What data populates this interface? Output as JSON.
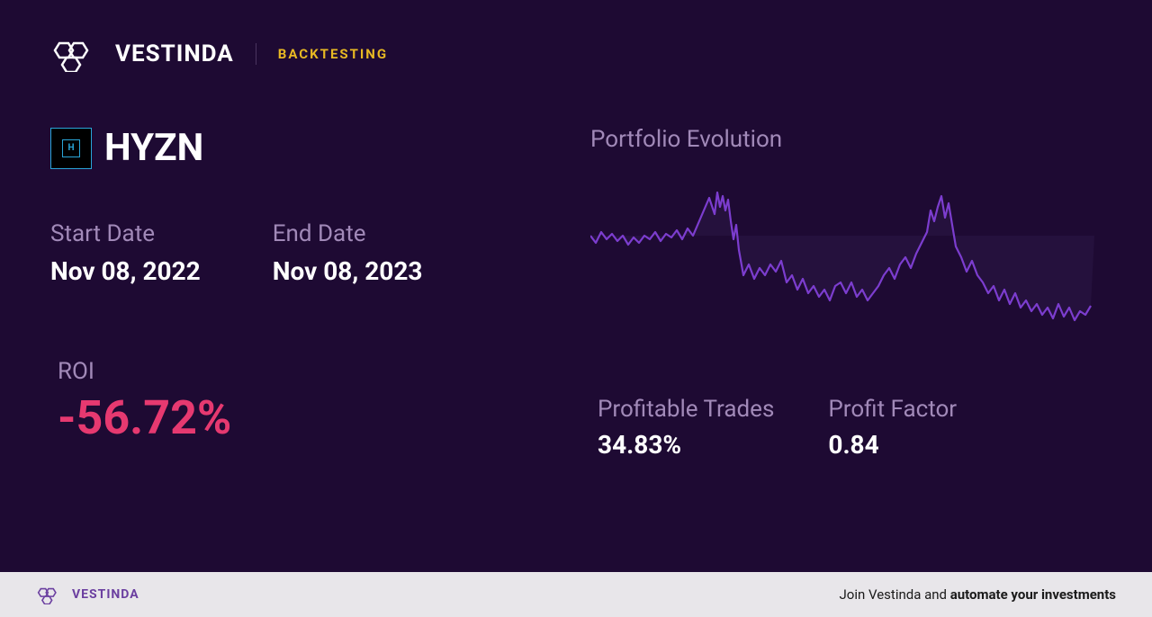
{
  "header": {
    "brand": "VESTINDA",
    "badge": "BACKTESTING",
    "logo_color": "#ffffff"
  },
  "ticker": {
    "symbol": "HYZN",
    "icon_letter": "H",
    "icon_border_color": "#2aa5d8",
    "icon_bg": "#000000"
  },
  "dates": {
    "start_label": "Start Date",
    "start_value": "Nov 08, 2022",
    "end_label": "End Date",
    "end_value": "Nov 08, 2023"
  },
  "roi": {
    "label": "ROI",
    "value": "-56.72%",
    "color": "#e63970"
  },
  "chart": {
    "title": "Portfolio Evolution",
    "line_color": "#7c3dcf",
    "fill_color": "#2c1848",
    "fill_opacity": 0.5,
    "line_width": 2.2,
    "ylim": [
      0,
      100
    ],
    "points": [
      [
        0,
        36
      ],
      [
        6,
        40
      ],
      [
        12,
        34
      ],
      [
        18,
        38
      ],
      [
        24,
        35
      ],
      [
        30,
        39
      ],
      [
        36,
        36
      ],
      [
        42,
        41
      ],
      [
        48,
        37
      ],
      [
        54,
        40
      ],
      [
        60,
        36
      ],
      [
        66,
        38
      ],
      [
        72,
        34
      ],
      [
        78,
        39
      ],
      [
        84,
        35
      ],
      [
        90,
        37
      ],
      [
        96,
        33
      ],
      [
        102,
        38
      ],
      [
        108,
        32
      ],
      [
        114,
        36
      ],
      [
        120,
        29
      ],
      [
        126,
        22
      ],
      [
        132,
        15
      ],
      [
        138,
        24
      ],
      [
        141,
        12
      ],
      [
        144,
        20
      ],
      [
        147,
        14
      ],
      [
        150,
        22
      ],
      [
        153,
        16
      ],
      [
        156,
        28
      ],
      [
        159,
        38
      ],
      [
        162,
        30
      ],
      [
        165,
        44
      ],
      [
        170,
        58
      ],
      [
        176,
        52
      ],
      [
        182,
        60
      ],
      [
        188,
        54
      ],
      [
        194,
        58
      ],
      [
        200,
        52
      ],
      [
        206,
        56
      ],
      [
        212,
        50
      ],
      [
        218,
        62
      ],
      [
        224,
        58
      ],
      [
        230,
        66
      ],
      [
        236,
        60
      ],
      [
        242,
        68
      ],
      [
        248,
        64
      ],
      [
        254,
        70
      ],
      [
        260,
        66
      ],
      [
        266,
        72
      ],
      [
        272,
        64
      ],
      [
        278,
        62
      ],
      [
        284,
        68
      ],
      [
        290,
        62
      ],
      [
        296,
        70
      ],
      [
        302,
        66
      ],
      [
        308,
        72
      ],
      [
        314,
        68
      ],
      [
        320,
        64
      ],
      [
        326,
        58
      ],
      [
        332,
        54
      ],
      [
        338,
        60
      ],
      [
        344,
        52
      ],
      [
        350,
        48
      ],
      [
        356,
        54
      ],
      [
        362,
        46
      ],
      [
        368,
        40
      ],
      [
        374,
        34
      ],
      [
        378,
        22
      ],
      [
        382,
        28
      ],
      [
        386,
        20
      ],
      [
        390,
        14
      ],
      [
        394,
        26
      ],
      [
        398,
        18
      ],
      [
        402,
        30
      ],
      [
        406,
        42
      ],
      [
        412,
        48
      ],
      [
        418,
        56
      ],
      [
        424,
        50
      ],
      [
        430,
        58
      ],
      [
        436,
        62
      ],
      [
        442,
        68
      ],
      [
        448,
        64
      ],
      [
        454,
        72
      ],
      [
        460,
        66
      ],
      [
        466,
        74
      ],
      [
        472,
        68
      ],
      [
        478,
        76
      ],
      [
        484,
        72
      ],
      [
        490,
        78
      ],
      [
        496,
        74
      ],
      [
        502,
        80
      ],
      [
        508,
        76
      ],
      [
        514,
        82
      ],
      [
        520,
        74
      ],
      [
        526,
        81
      ],
      [
        532,
        76
      ],
      [
        538,
        83
      ],
      [
        544,
        78
      ],
      [
        550,
        80
      ],
      [
        556,
        75
      ]
    ]
  },
  "metrics": {
    "profitable_trades_label": "Profitable Trades",
    "profitable_trades_value": "34.83%",
    "profit_factor_label": "Profit Factor",
    "profit_factor_value": "0.84"
  },
  "footer": {
    "brand": "VESTINDA",
    "logo_color": "#6b3fa0",
    "cta_prefix": "Join Vestinda and ",
    "cta_bold": "automate your investments"
  },
  "colors": {
    "bg": "#1e0a33",
    "text_muted": "#a189b8",
    "accent_gold": "#e8b923"
  }
}
